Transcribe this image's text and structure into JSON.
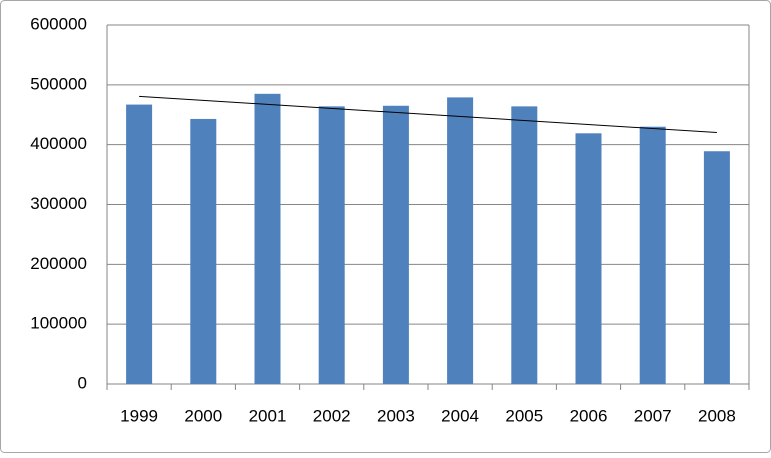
{
  "chart_data": {
    "type": "bar",
    "categories": [
      "1999",
      "2000",
      "2001",
      "2002",
      "2003",
      "2004",
      "2005",
      "2006",
      "2007",
      "2008"
    ],
    "values": [
      467000,
      443000,
      485000,
      464000,
      465000,
      479000,
      464000,
      419000,
      430000,
      389000
    ],
    "color": "#4f81bd",
    "ylim": [
      0,
      600000
    ],
    "yticks": [
      0,
      100000,
      200000,
      300000,
      400000,
      500000,
      600000
    ],
    "grid": true,
    "trendline": "linear"
  }
}
